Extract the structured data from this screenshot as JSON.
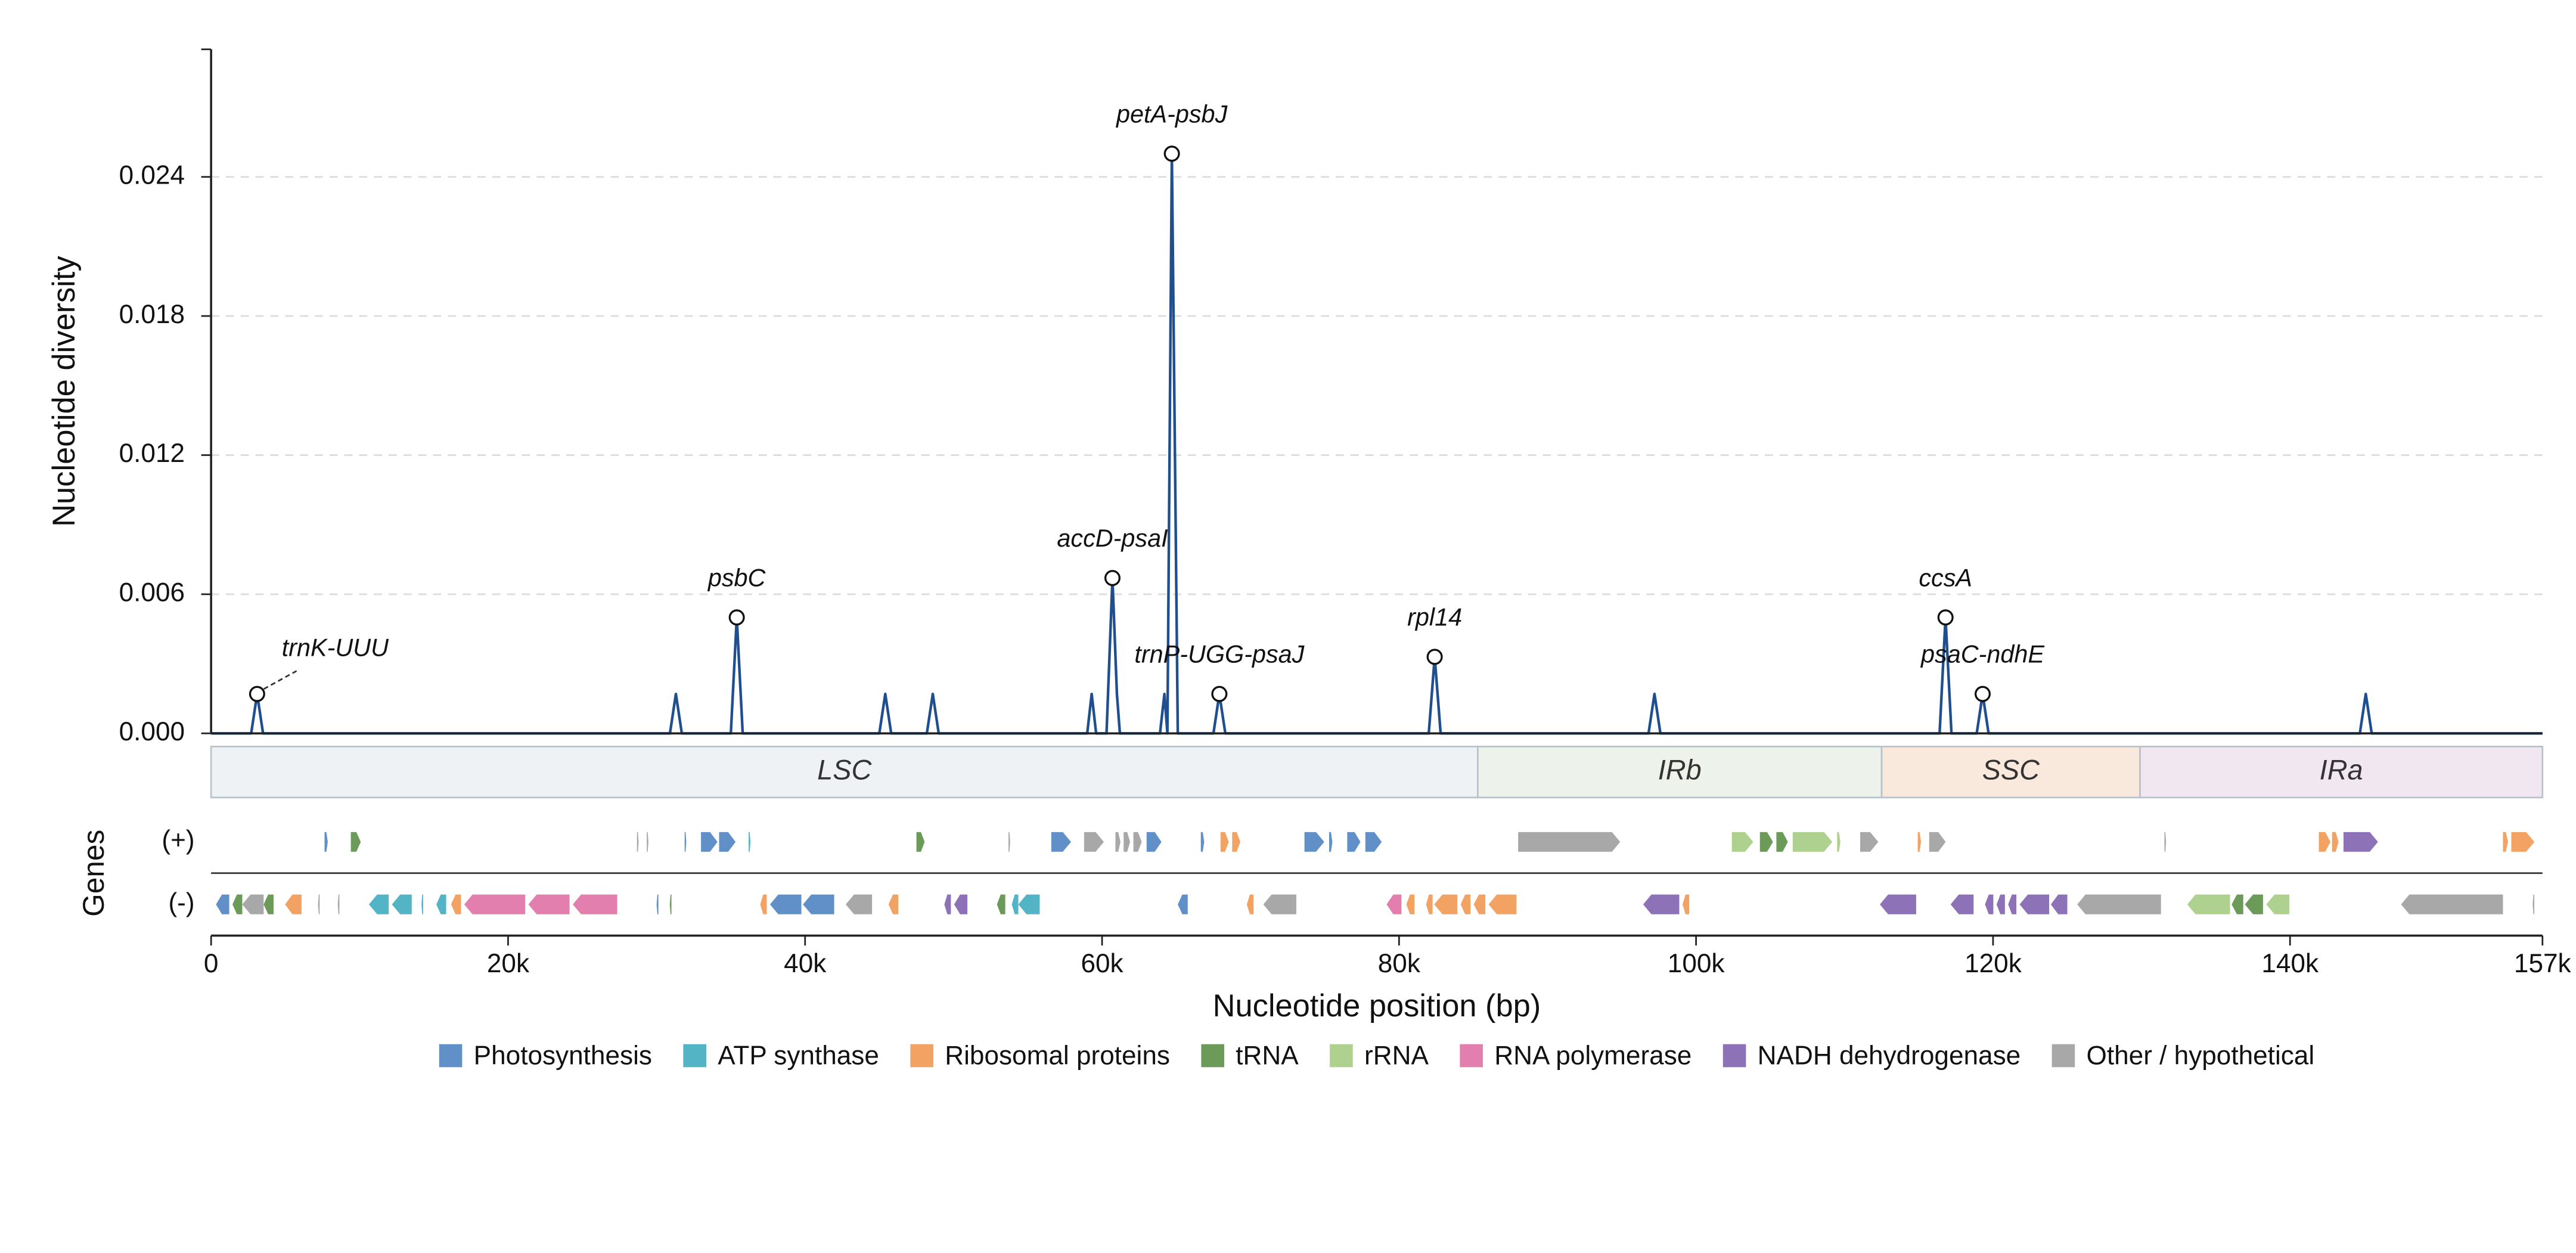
{
  "chart_data": {
    "type": "line",
    "xlabel": "Nucleotide position (bp)",
    "ylabel": "Nucleotide diversity",
    "xlim": [
      0,
      157000
    ],
    "ylim": [
      0,
      0.0295
    ],
    "xticks": [
      0,
      {
        "value": 20000,
        "label": "20k"
      },
      {
        "value": 40000,
        "label": "40k"
      },
      {
        "value": 60000,
        "label": "60k"
      },
      {
        "value": 80000,
        "label": "80k"
      },
      {
        "value": 100000,
        "label": "100k"
      },
      {
        "value": 120000,
        "label": "120k"
      },
      {
        "value": 140000,
        "label": "140k"
      },
      {
        "value": 157000,
        "label": "157k"
      }
    ],
    "yticks": [
      {
        "value": 0,
        "label": "0.000"
      },
      0.006,
      0.012,
      0.018,
      0.024
    ],
    "grid": true,
    "line_color": "#1f4f8f",
    "x": [
      0,
      2700,
      3100,
      3500,
      30900,
      31300,
      31700,
      35000,
      35400,
      35800,
      45000,
      45400,
      45800,
      48200,
      48600,
      49000,
      59000,
      59300,
      59600,
      60300,
      60700,
      61000,
      61200,
      63900,
      64200,
      64400,
      64700,
      65100,
      67500,
      67900,
      68300,
      82000,
      82400,
      82800,
      96800,
      97200,
      97600,
      116400,
      116800,
      117200,
      118900,
      119300,
      119700,
      144700,
      145100,
      145500,
      157000
    ],
    "values": [
      0,
      0,
      0.0017,
      0,
      0,
      0.0017,
      0,
      0,
      0.005,
      0,
      0,
      0.0017,
      0,
      0,
      0.0017,
      0,
      0,
      0.0017,
      0,
      0,
      0.0067,
      0.0017,
      0,
      0,
      0.0017,
      0,
      0.025,
      0,
      0,
      0.0017,
      0,
      0,
      0.0033,
      0,
      0,
      0.0017,
      0,
      0,
      0.005,
      0,
      0,
      0.0017,
      0,
      0,
      0.0017,
      0,
      0
    ],
    "labels": [
      null,
      null,
      "trnK-UUU",
      null,
      null,
      null,
      null,
      null,
      "psbC",
      null,
      null,
      null,
      null,
      null,
      null,
      null,
      null,
      null,
      null,
      null,
      "accD-psaI",
      null,
      null,
      null,
      null,
      null,
      "petA-psbJ",
      null,
      null,
      "trnP-UGG-psaJ",
      null,
      null,
      "rpl14",
      null,
      null,
      null,
      null,
      null,
      "ccsA",
      null,
      null,
      "psaC-ndhE",
      null,
      null,
      null,
      null,
      null
    ],
    "regions": [
      {
        "name": "LSC",
        "start": 0,
        "end": 85300,
        "color": "#eef2f5"
      },
      {
        "name": "IRb",
        "start": 85300,
        "end": 112500,
        "color": "#edf2ea"
      },
      {
        "name": "SSC",
        "start": 112500,
        "end": 129900,
        "color": "#f8e9dc"
      },
      {
        "name": "IRa",
        "start": 129900,
        "end": 157000,
        "color": "#f1e7f1"
      }
    ],
    "gene_track": {
      "title": "Genes",
      "plus_label": "(+)",
      "minus_label": "(-)",
      "categories": [
        {
          "name": "Photosynthesis",
          "color": "#6190c8"
        },
        {
          "name": "ATP synthase",
          "color": "#52b4c4"
        },
        {
          "name": "Ribosomal proteins",
          "color": "#f2a263"
        },
        {
          "name": "tRNA",
          "color": "#6b9a59"
        },
        {
          "name": "rRNA",
          "color": "#afd18f"
        },
        {
          "name": "RNA polymerase",
          "color": "#e27fae"
        },
        {
          "name": "NADH dehydrogenase",
          "color": "#8e72b8"
        },
        {
          "name": "Other / hypothetical",
          "color": "#a8a8a8"
        }
      ],
      "plus": [
        {
          "start": 7640,
          "end": 7860,
          "category": "Photosynthesis"
        },
        {
          "start": 9410,
          "end": 10080,
          "category": "tRNA"
        },
        {
          "start": 28680,
          "end": 28790,
          "category": "Other / hypothetical"
        },
        {
          "start": 29340,
          "end": 29450,
          "category": "Other / hypothetical"
        },
        {
          "start": 31890,
          "end": 32000,
          "category": "Photosynthesis"
        },
        {
          "start": 32990,
          "end": 34100,
          "category": "Photosynthesis"
        },
        {
          "start": 34210,
          "end": 35320,
          "category": "Photosynthesis"
        },
        {
          "start": 36200,
          "end": 36320,
          "category": "ATP synthase"
        },
        {
          "start": 47500,
          "end": 48050,
          "category": "tRNA"
        },
        {
          "start": 53700,
          "end": 53810,
          "category": "Other / hypothetical"
        },
        {
          "start": 56580,
          "end": 57910,
          "category": "Photosynthesis"
        },
        {
          "start": 58790,
          "end": 60120,
          "category": "Other / hypothetical"
        },
        {
          "start": 60900,
          "end": 61240,
          "category": "Other / hypothetical"
        },
        {
          "start": 61450,
          "end": 61890,
          "category": "Other / hypothetical"
        },
        {
          "start": 62110,
          "end": 62670,
          "category": "Other / hypothetical"
        },
        {
          "start": 63000,
          "end": 64000,
          "category": "Photosynthesis"
        },
        {
          "start": 66650,
          "end": 66880,
          "category": "Photosynthesis"
        },
        {
          "start": 67980,
          "end": 68530,
          "category": "Ribosomal proteins"
        },
        {
          "start": 68760,
          "end": 69310,
          "category": "Ribosomal proteins"
        },
        {
          "start": 73630,
          "end": 74960,
          "category": "Photosynthesis"
        },
        {
          "start": 75290,
          "end": 75510,
          "category": "Photosynthesis"
        },
        {
          "start": 76510,
          "end": 77400,
          "category": "Photosynthesis"
        },
        {
          "start": 77730,
          "end": 78830,
          "category": "Photosynthesis"
        },
        {
          "start": 88020,
          "end": 94890,
          "category": "Other / hypothetical"
        },
        {
          "start": 102410,
          "end": 103850,
          "category": "rRNA"
        },
        {
          "start": 104300,
          "end": 105180,
          "category": "tRNA"
        },
        {
          "start": 105410,
          "end": 106180,
          "category": "tRNA"
        },
        {
          "start": 106510,
          "end": 109170,
          "category": "rRNA"
        },
        {
          "start": 109500,
          "end": 109720,
          "category": "rRNA"
        },
        {
          "start": 111050,
          "end": 112270,
          "category": "Other / hypothetical"
        },
        {
          "start": 114930,
          "end": 115150,
          "category": "Ribosomal proteins"
        },
        {
          "start": 115700,
          "end": 116810,
          "category": "Other / hypothetical"
        },
        {
          "start": 131540,
          "end": 131650,
          "category": "Other / hypothetical"
        },
        {
          "start": 141940,
          "end": 142720,
          "category": "Ribosomal proteins"
        },
        {
          "start": 142830,
          "end": 143270,
          "category": "Ribosomal proteins"
        },
        {
          "start": 143600,
          "end": 145920,
          "category": "NADH dehydrogenase"
        },
        {
          "start": 154340,
          "end": 154680,
          "category": "Ribosomal proteins"
        },
        {
          "start": 154900,
          "end": 156450,
          "category": "Ribosomal proteins"
        }
      ],
      "minus": [
        {
          "start": 330,
          "end": 1220,
          "category": "Photosynthesis"
        },
        {
          "start": 1440,
          "end": 2100,
          "category": "tRNA"
        },
        {
          "start": 2100,
          "end": 3540,
          "category": "Other / hypothetical"
        },
        {
          "start": 3540,
          "end": 4210,
          "category": "tRNA"
        },
        {
          "start": 4980,
          "end": 6090,
          "category": "Ribosomal proteins"
        },
        {
          "start": 7200,
          "end": 7310,
          "category": "Other / hypothetical"
        },
        {
          "start": 8530,
          "end": 8640,
          "category": "Other / hypothetical"
        },
        {
          "start": 10630,
          "end": 11960,
          "category": "ATP synthase"
        },
        {
          "start": 12180,
          "end": 13510,
          "category": "ATP synthase"
        },
        {
          "start": 14170,
          "end": 14280,
          "category": "ATP synthase"
        },
        {
          "start": 15170,
          "end": 15830,
          "category": "ATP synthase"
        },
        {
          "start": 16160,
          "end": 16830,
          "category": "Ribosomal proteins"
        },
        {
          "start": 17050,
          "end": 21150,
          "category": "RNA polymerase"
        },
        {
          "start": 21370,
          "end": 24140,
          "category": "RNA polymerase"
        },
        {
          "start": 24360,
          "end": 27350,
          "category": "RNA polymerase"
        },
        {
          "start": 30000,
          "end": 30120,
          "category": "Photosynthesis"
        },
        {
          "start": 30890,
          "end": 31000,
          "category": "tRNA"
        },
        {
          "start": 36980,
          "end": 37420,
          "category": "Ribosomal proteins"
        },
        {
          "start": 37640,
          "end": 39750,
          "category": "Photosynthesis"
        },
        {
          "start": 39860,
          "end": 41960,
          "category": "Photosynthesis"
        },
        {
          "start": 42740,
          "end": 44510,
          "category": "Other / hypothetical"
        },
        {
          "start": 45620,
          "end": 46280,
          "category": "Ribosomal proteins"
        },
        {
          "start": 49380,
          "end": 49820,
          "category": "NADH dehydrogenase"
        },
        {
          "start": 50040,
          "end": 50930,
          "category": "NADH dehydrogenase"
        },
        {
          "start": 52920,
          "end": 53480,
          "category": "tRNA"
        },
        {
          "start": 53920,
          "end": 54360,
          "category": "ATP synthase"
        },
        {
          "start": 54360,
          "end": 55800,
          "category": "ATP synthase"
        },
        {
          "start": 65100,
          "end": 65770,
          "category": "Photosynthesis"
        },
        {
          "start": 69750,
          "end": 70200,
          "category": "Ribosomal proteins"
        },
        {
          "start": 70860,
          "end": 73080,
          "category": "Other / hypothetical"
        },
        {
          "start": 79160,
          "end": 80160,
          "category": "RNA polymerase"
        },
        {
          "start": 80490,
          "end": 81040,
          "category": "Ribosomal proteins"
        },
        {
          "start": 81820,
          "end": 82260,
          "category": "Ribosomal proteins"
        },
        {
          "start": 82370,
          "end": 83920,
          "category": "Ribosomal proteins"
        },
        {
          "start": 84150,
          "end": 84810,
          "category": "Ribosomal proteins"
        },
        {
          "start": 85030,
          "end": 85810,
          "category": "Ribosomal proteins"
        },
        {
          "start": 86030,
          "end": 87910,
          "category": "Ribosomal proteins"
        },
        {
          "start": 96440,
          "end": 98870,
          "category": "NADH dehydrogenase"
        },
        {
          "start": 99090,
          "end": 99540,
          "category": "Ribosomal proteins"
        },
        {
          "start": 112380,
          "end": 114820,
          "category": "NADH dehydrogenase"
        },
        {
          "start": 117140,
          "end": 118690,
          "category": "NADH dehydrogenase"
        },
        {
          "start": 119460,
          "end": 120020,
          "category": "NADH dehydrogenase"
        },
        {
          "start": 120240,
          "end": 120800,
          "category": "NADH dehydrogenase"
        },
        {
          "start": 121020,
          "end": 121570,
          "category": "NADH dehydrogenase"
        },
        {
          "start": 121790,
          "end": 123780,
          "category": "NADH dehydrogenase"
        },
        {
          "start": 123890,
          "end": 125000,
          "category": "NADH dehydrogenase"
        },
        {
          "start": 125670,
          "end": 131310,
          "category": "Other / hypothetical"
        },
        {
          "start": 133080,
          "end": 135960,
          "category": "rRNA"
        },
        {
          "start": 136070,
          "end": 136850,
          "category": "tRNA"
        },
        {
          "start": 136960,
          "end": 138180,
          "category": "tRNA"
        },
        {
          "start": 138400,
          "end": 139950,
          "category": "rRNA"
        },
        {
          "start": 147480,
          "end": 154340,
          "category": "Other / hypothetical"
        },
        {
          "start": 156340,
          "end": 156450,
          "category": "Other / hypothetical"
        }
      ]
    }
  }
}
